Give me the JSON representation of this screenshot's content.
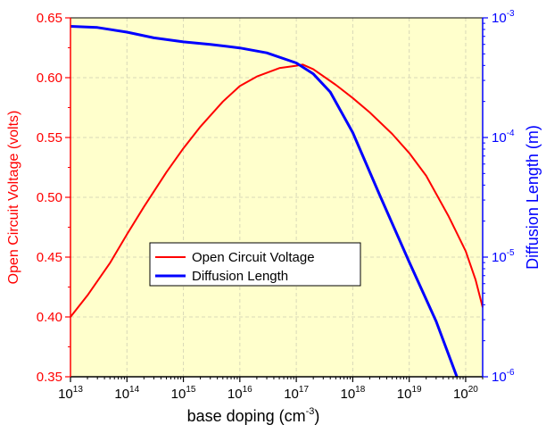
{
  "chart_data": {
    "type": "line",
    "x_scale": "log",
    "x_label": {
      "prefix": "base doping (cm",
      "sup": "-3",
      "suffix": ")"
    },
    "x_ticks": [
      {
        "exp": "13",
        "value": 10000000000000.0
      },
      {
        "exp": "14",
        "value": 100000000000000.0
      },
      {
        "exp": "15",
        "value": 1000000000000000.0
      },
      {
        "exp": "16",
        "value": 1e+16
      },
      {
        "exp": "17",
        "value": 1e+17
      },
      {
        "exp": "18",
        "value": 1e+18
      },
      {
        "exp": "19",
        "value": 1e+19
      },
      {
        "exp": "20",
        "value": 1e+20
      }
    ],
    "x_range": [
      10000000000000.0,
      2e+20
    ],
    "y_left": {
      "label": "Open Circuit Voltage (volts)",
      "color": "#ff0000",
      "range": [
        0.35,
        0.65
      ],
      "ticks": [
        {
          "label": "0.35",
          "value": 0.35
        },
        {
          "label": "0.40",
          "value": 0.4
        },
        {
          "label": "0.45",
          "value": 0.45
        },
        {
          "label": "0.50",
          "value": 0.5
        },
        {
          "label": "0.55",
          "value": 0.55
        },
        {
          "label": "0.60",
          "value": 0.6
        },
        {
          "label": "0.65",
          "value": 0.65
        }
      ]
    },
    "y_right": {
      "label": "Diffusion Length (m)",
      "color": "#0000ff",
      "scale": "log",
      "range": [
        1e-06,
        0.001
      ],
      "ticks": [
        {
          "exp": "-6",
          "value": 1e-06
        },
        {
          "exp": "-5",
          "value": 1e-05
        },
        {
          "exp": "-4",
          "value": 0.0001
        },
        {
          "exp": "-3",
          "value": 0.001
        }
      ]
    },
    "series": [
      {
        "name": "Open Circuit Voltage",
        "axis": "left",
        "color": "#ff0000",
        "x": [
          10000000000000.0,
          20000000000000.0,
          50000000000000.0,
          100000000000000.0,
          200000000000000.0,
          500000000000000.0,
          1000000000000000.0,
          2000000000000000.0,
          5000000000000000.0,
          1e+16,
          2e+16,
          5e+16,
          1e+17,
          1.3e+17,
          2e+17,
          5e+17,
          1e+18,
          2e+18,
          5e+18,
          1e+19,
          2e+19,
          5e+19,
          1e+20,
          1.5e+20,
          2e+20
        ],
        "values": [
          0.4,
          0.418,
          0.445,
          0.469,
          0.492,
          0.521,
          0.541,
          0.559,
          0.58,
          0.593,
          0.601,
          0.608,
          0.61,
          0.611,
          0.607,
          0.594,
          0.583,
          0.571,
          0.553,
          0.537,
          0.518,
          0.484,
          0.455,
          0.431,
          0.408
        ]
      },
      {
        "name": "Diffusion Length",
        "axis": "right",
        "color": "#0000ff",
        "x": [
          10000000000000.0,
          30000000000000.0,
          100000000000000.0,
          300000000000000.0,
          1000000000000000.0,
          3000000000000000.0,
          1e+16,
          3e+16,
          1e+17,
          2e+17,
          4e+17,
          1e+18,
          3e+18,
          1e+19,
          3e+19,
          7e+19
        ],
        "values": [
          0.00085,
          0.00083,
          0.00076,
          0.00068,
          0.00063,
          0.0006,
          0.00056,
          0.00051,
          0.00042,
          0.00034,
          0.00024,
          0.00011,
          3.3e-05,
          9.1e-06,
          2.9e-06,
          1e-06
        ]
      }
    ],
    "legend": {
      "placement": "center-left",
      "entries": [
        "Open Circuit Voltage",
        "Diffusion Length"
      ]
    },
    "background": "#ffffcc",
    "grid": true
  }
}
